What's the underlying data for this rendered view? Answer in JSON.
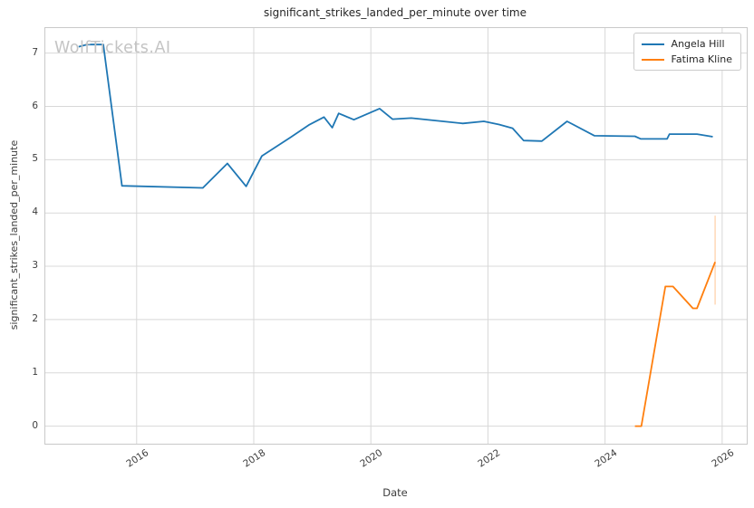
{
  "figure": {
    "title": "significant_strikes_landed_per_minute over time",
    "xlabel": "Date",
    "ylabel": "significant_strikes_landed_per_minute",
    "watermark": "WolfTickets.AI"
  },
  "colors": {
    "series1": "#1f77b4",
    "series2": "#ff7f0e",
    "errorbar": "#ff7f0e",
    "grid": "#d8d8d8",
    "spine": "#c9c9c9",
    "tick_text": "#3d3d3d",
    "title_text": "#262626",
    "watermark_text": "#c4c4c4",
    "background": "#ffffff"
  },
  "chart_data": {
    "type": "line",
    "title": "significant_strikes_landed_per_minute over time",
    "xlabel": "Date",
    "ylabel": "significant_strikes_landed_per_minute",
    "grid": true,
    "legend_position": "upper right",
    "xlim": [
      2014.44,
      2026.42
    ],
    "ylim": [
      -0.33,
      7.47
    ],
    "x_ticks": [
      2016,
      2018,
      2020,
      2022,
      2024,
      2026
    ],
    "x_tick_labels": [
      "2016",
      "2018",
      "2020",
      "2022",
      "2024",
      "2026"
    ],
    "y_ticks": [
      0,
      1,
      2,
      3,
      4,
      5,
      6,
      7
    ],
    "y_tick_labels": [
      "0",
      "1",
      "2",
      "3",
      "4",
      "5",
      "6",
      "7"
    ],
    "series": [
      {
        "name": "Angela Hill",
        "color": "#1f77b4",
        "points": [
          [
            2015.01,
            7.12
          ],
          [
            2015.15,
            7.16
          ],
          [
            2015.43,
            7.16
          ],
          [
            2015.75,
            4.51
          ],
          [
            2017.13,
            4.47
          ],
          [
            2017.55,
            4.93
          ],
          [
            2017.87,
            4.5
          ],
          [
            2018.14,
            5.07
          ],
          [
            2018.63,
            5.42
          ],
          [
            2018.94,
            5.65
          ],
          [
            2019.2,
            5.8
          ],
          [
            2019.34,
            5.6
          ],
          [
            2019.45,
            5.87
          ],
          [
            2019.71,
            5.75
          ],
          [
            2020.15,
            5.96
          ],
          [
            2020.37,
            5.76
          ],
          [
            2020.69,
            5.78
          ],
          [
            2021.57,
            5.68
          ],
          [
            2021.93,
            5.72
          ],
          [
            2022.19,
            5.66
          ],
          [
            2022.42,
            5.59
          ],
          [
            2022.61,
            5.36
          ],
          [
            2022.92,
            5.35
          ],
          [
            2023.35,
            5.72
          ],
          [
            2023.82,
            5.45
          ],
          [
            2024.51,
            5.44
          ],
          [
            2024.61,
            5.39
          ],
          [
            2025.06,
            5.39
          ],
          [
            2025.1,
            5.48
          ],
          [
            2025.57,
            5.48
          ],
          [
            2025.84,
            5.43
          ]
        ]
      },
      {
        "name": "Fatima Kline",
        "color": "#ff7f0e",
        "points": [
          [
            2024.51,
            0.0
          ],
          [
            2024.62,
            0.0
          ],
          [
            2025.03,
            2.62
          ],
          [
            2025.16,
            2.62
          ],
          [
            2025.5,
            2.21
          ],
          [
            2025.57,
            2.21
          ],
          [
            2025.88,
            3.08
          ]
        ],
        "error_bar": {
          "x": 2025.88,
          "y_low": 2.28,
          "y_high": 3.95
        }
      }
    ]
  }
}
